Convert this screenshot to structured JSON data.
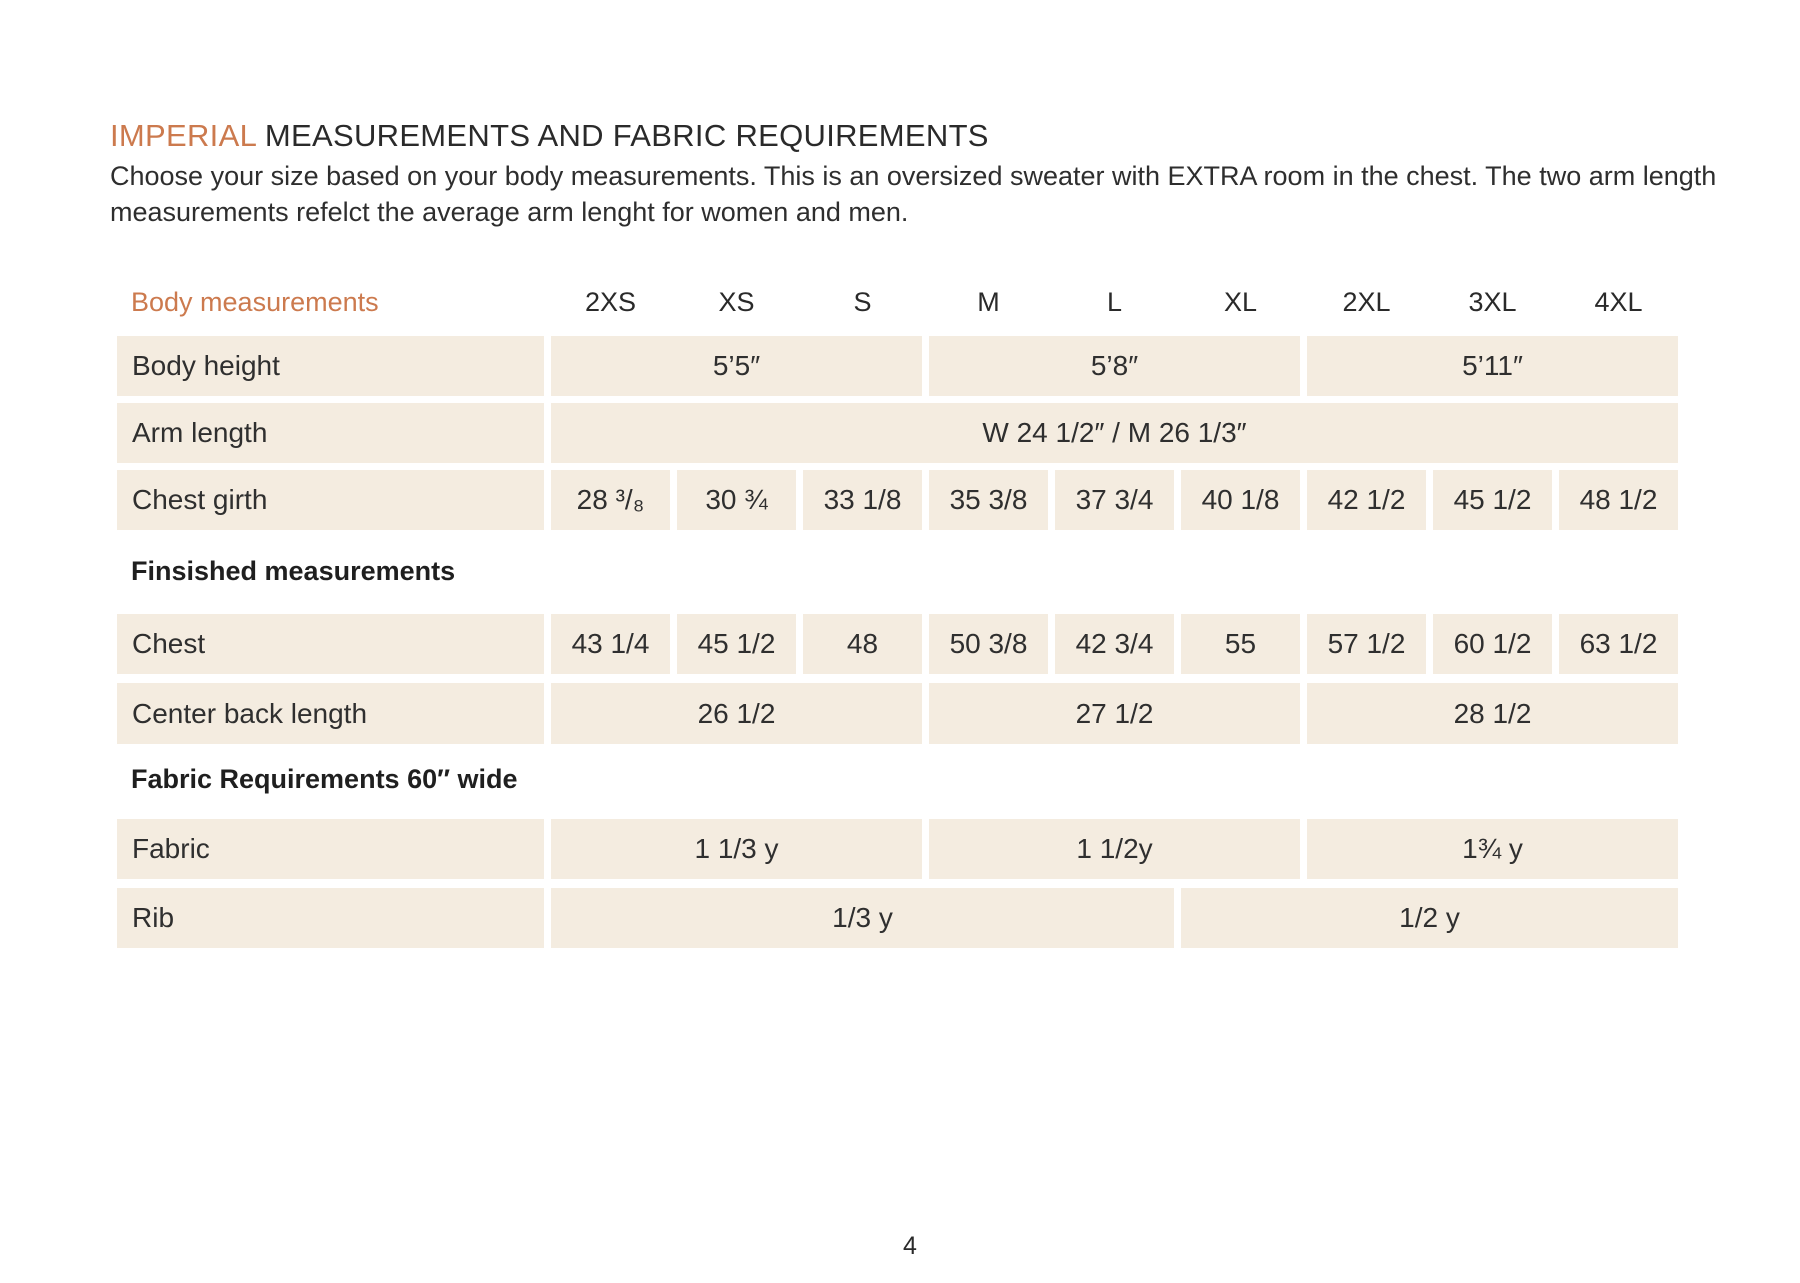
{
  "heading": {
    "accent": "IMPERIAL",
    "rest": "MEASUREMENTS AND FABRIC REQUIREMENTS"
  },
  "intro": "Choose your size based on your body measurements. This is an oversized sweater with EXTRA room in the chest. The two arm length measurements refelct the average arm lenght for women and men.",
  "table": {
    "header_label": "Body measurements",
    "sizes": [
      "2XS",
      "XS",
      "S",
      "M",
      "L",
      "XL",
      "2XL",
      "3XL",
      "4XL"
    ],
    "body_height": {
      "label": "Body height",
      "values": [
        "5’5″",
        "5’8″",
        "5’11″"
      ]
    },
    "arm_length": {
      "label": "Arm length",
      "value": "W 24 1/2″  /  M 26 1/3″"
    },
    "chest_girth": {
      "label": "Chest girth",
      "values": [
        "28 ³/₈",
        "30 ¾",
        "33 1/8",
        "35 3/8",
        "37 3/4",
        "40 1/8",
        "42 1/2",
        "45 1/2",
        "48 1/2"
      ]
    },
    "finished_title": "Finsished  measurements",
    "chest": {
      "label": "Chest",
      "values": [
        "43 1/4",
        "45 1/2",
        "48",
        "50 3/8",
        "42 3/4",
        "55",
        "57 1/2",
        "60 1/2",
        "63 1/2"
      ]
    },
    "center_back": {
      "label": "Center back length",
      "values": [
        "26 1/2",
        "27 1/2",
        "28 1/2"
      ]
    },
    "fabric_title": "Fabric Requirements 60″ wide",
    "fabric": {
      "label": "Fabric",
      "values": [
        "1 1/3  y",
        "1 1/2y",
        "1¾ y"
      ]
    },
    "rib": {
      "label": "Rib",
      "values": [
        "1/3 y",
        "1/2 y"
      ]
    }
  },
  "page_number": "4",
  "colors": {
    "accent": "#cc7a4e",
    "cell_bg": "#f4ece0"
  }
}
